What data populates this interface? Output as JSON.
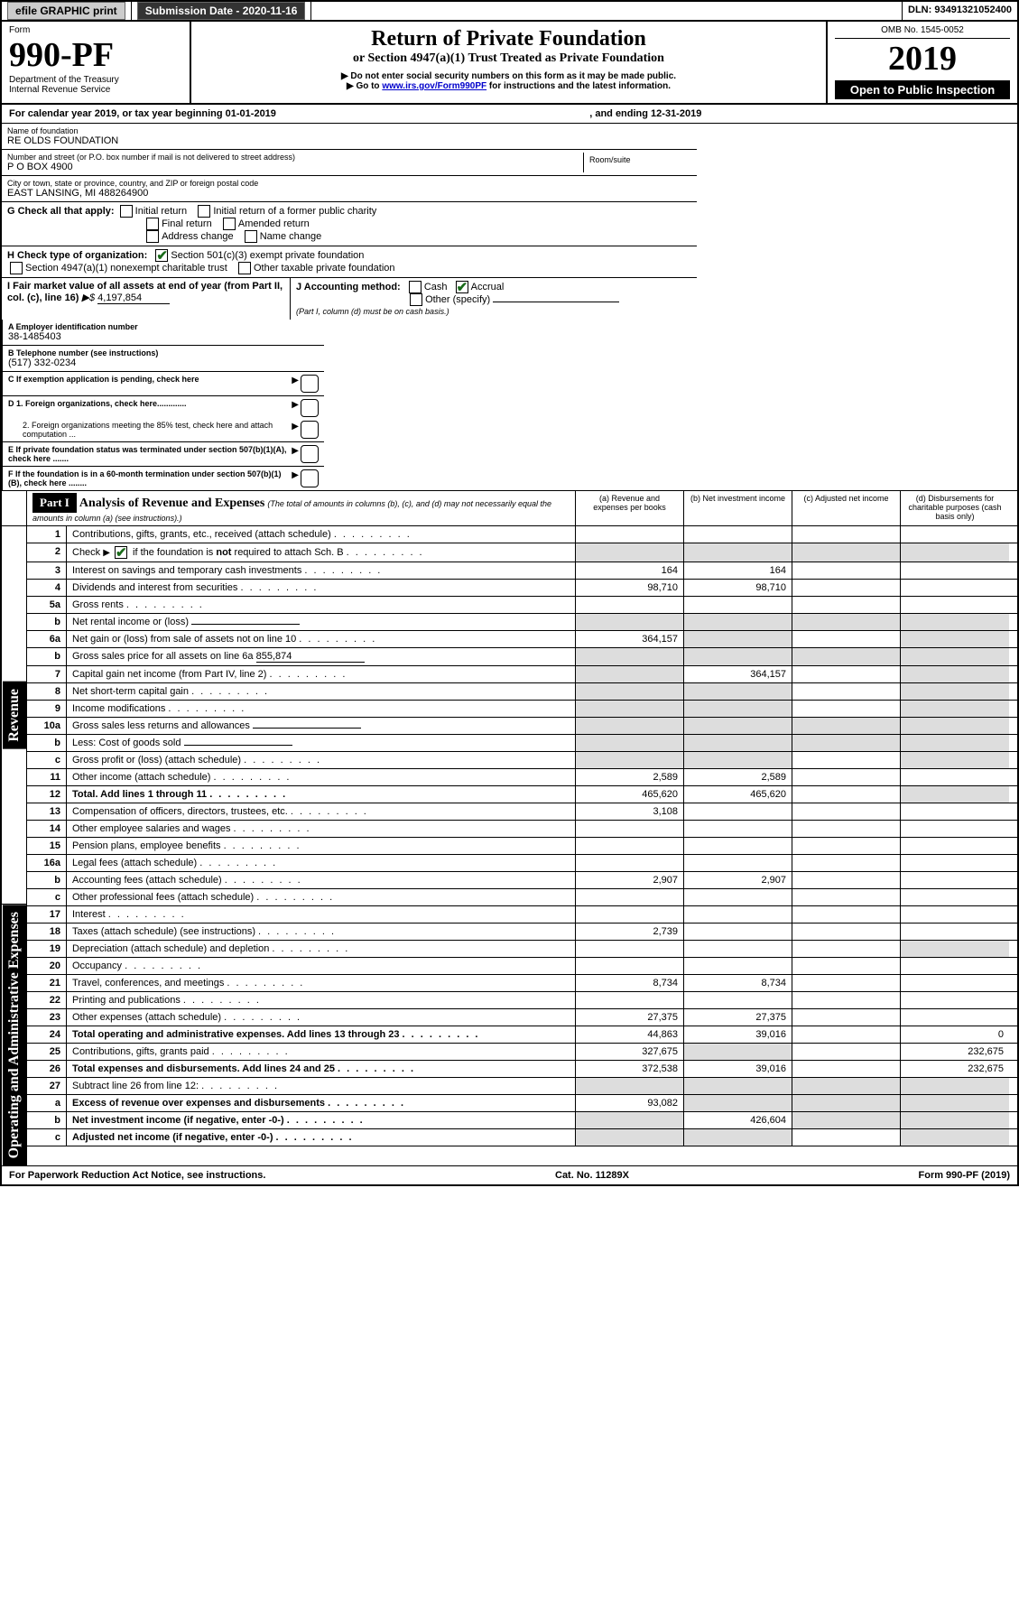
{
  "topbar": {
    "efile_btn": "efile GRAPHIC print",
    "sub_label": "Submission Date - 2020-11-16",
    "dln_label": "DLN: 93491321052400"
  },
  "header": {
    "form_word": "Form",
    "form_no": "990-PF",
    "dept": "Department of the Treasury",
    "irs": "Internal Revenue Service",
    "title": "Return of Private Foundation",
    "subtitle": "or Section 4947(a)(1) Trust Treated as Private Foundation",
    "note1": "▶ Do not enter social security numbers on this form as it may be made public.",
    "note2_pre": "▶ Go to ",
    "note2_link": "www.irs.gov/Form990PF",
    "note2_post": " for instructions and the latest information.",
    "omb": "OMB No. 1545-0052",
    "year": "2019",
    "open": "Open to Public Inspection"
  },
  "cal": {
    "line1": "For calendar year 2019, or tax year beginning 01-01-2019",
    "line2": ", and ending 12-31-2019"
  },
  "id": {
    "name_lbl": "Name of foundation",
    "name": "RE OLDS FOUNDATION",
    "addr_lbl": "Number and street (or P.O. box number if mail is not delivered to street address)",
    "addr": "P O BOX 4900",
    "room_lbl": "Room/suite",
    "city_lbl": "City or town, state or province, country, and ZIP or foreign postal code",
    "city": "EAST LANSING, MI  488264900",
    "ein_lbl": "A Employer identification number",
    "ein": "38-1485403",
    "tel_lbl": "B Telephone number (see instructions)",
    "tel": "(517) 332-0234",
    "c_lbl": "C If exemption application is pending, check here",
    "d1_lbl": "D 1. Foreign organizations, check here.............",
    "d2_lbl": "2. Foreign organizations meeting the 85% test, check here and attach computation ...",
    "e_lbl": "E  If private foundation status was terminated under section 507(b)(1)(A), check here .......",
    "f_lbl": "F  If the foundation is in a 60-month termination under section 507(b)(1)(B), check here ........"
  },
  "g": {
    "label": "G Check all that apply:",
    "opts": [
      "Initial return",
      "Initial return of a former public charity",
      "Final return",
      "Amended return",
      "Address change",
      "Name change"
    ]
  },
  "h": {
    "label": "H Check type of organization:",
    "o1": "Section 501(c)(3) exempt private foundation",
    "o2": "Section 4947(a)(1) nonexempt charitable trust",
    "o3": "Other taxable private foundation"
  },
  "i": {
    "label": "I Fair market value of all assets at end of year (from Part II, col. (c), line 16)",
    "arrow": "▶$",
    "val": "4,197,854"
  },
  "j": {
    "label": "J Accounting method:",
    "cash": "Cash",
    "accrual": "Accrual",
    "other": "Other (specify)",
    "note": "(Part I, column (d) must be on cash basis.)"
  },
  "part1": {
    "tag": "Part I",
    "title": "Analysis of Revenue and Expenses",
    "note": "(The total of amounts in columns (b), (c), and (d) may not necessarily equal the amounts in column (a) (see instructions).)",
    "cols": {
      "a": "(a) Revenue and expenses per books",
      "b": "(b) Net investment income",
      "c": "(c) Adjusted net income",
      "d": "(d) Disbursements for charitable purposes (cash basis only)"
    }
  },
  "side": {
    "rev": "Revenue",
    "exp": "Operating and Administrative Expenses"
  },
  "rows": [
    {
      "n": "1",
      "t": "Contributions, gifts, grants, etc., received (attach schedule)",
      "a": "",
      "b": "",
      "c": "",
      "d": ""
    },
    {
      "n": "2",
      "t": "Check ▶ ☑ if the foundation is not required to attach Sch. B",
      "a": "g",
      "b": "g",
      "c": "g",
      "d": "g",
      "ck": true
    },
    {
      "n": "3",
      "t": "Interest on savings and temporary cash investments",
      "a": "164",
      "b": "164",
      "c": "",
      "d": ""
    },
    {
      "n": "4",
      "t": "Dividends and interest from securities",
      "a": "98,710",
      "b": "98,710",
      "c": "",
      "d": ""
    },
    {
      "n": "5a",
      "t": "Gross rents",
      "a": "",
      "b": "",
      "c": "",
      "d": ""
    },
    {
      "n": "b",
      "t": "Net rental income or (loss)",
      "a": "g",
      "b": "g",
      "c": "g",
      "d": "g",
      "inline": true
    },
    {
      "n": "6a",
      "t": "Net gain or (loss) from sale of assets not on line 10",
      "a": "364,157",
      "b": "g",
      "c": "",
      "d": "g"
    },
    {
      "n": "b",
      "t": "Gross sales price for all assets on line 6a",
      "a": "g",
      "b": "g",
      "c": "g",
      "d": "g",
      "inline": true,
      "val": "855,874"
    },
    {
      "n": "7",
      "t": "Capital gain net income (from Part IV, line 2)",
      "a": "g",
      "b": "364,157",
      "c": "",
      "d": "g"
    },
    {
      "n": "8",
      "t": "Net short-term capital gain",
      "a": "g",
      "b": "g",
      "c": "",
      "d": "g"
    },
    {
      "n": "9",
      "t": "Income modifications",
      "a": "g",
      "b": "g",
      "c": "",
      "d": "g"
    },
    {
      "n": "10a",
      "t": "Gross sales less returns and allowances",
      "a": "g",
      "b": "g",
      "c": "g",
      "d": "g",
      "inline": true
    },
    {
      "n": "b",
      "t": "Less: Cost of goods sold",
      "a": "g",
      "b": "g",
      "c": "g",
      "d": "g",
      "inline": true
    },
    {
      "n": "c",
      "t": "Gross profit or (loss) (attach schedule)",
      "a": "g",
      "b": "g",
      "c": "",
      "d": "g"
    },
    {
      "n": "11",
      "t": "Other income (attach schedule)",
      "a": "2,589",
      "b": "2,589",
      "c": "",
      "d": ""
    },
    {
      "n": "12",
      "t": "Total. Add lines 1 through 11",
      "a": "465,620",
      "b": "465,620",
      "c": "",
      "d": "g",
      "bold": true
    },
    {
      "n": "13",
      "t": "Compensation of officers, directors, trustees, etc.",
      "a": "3,108",
      "b": "",
      "c": "",
      "d": ""
    },
    {
      "n": "14",
      "t": "Other employee salaries and wages",
      "a": "",
      "b": "",
      "c": "",
      "d": ""
    },
    {
      "n": "15",
      "t": "Pension plans, employee benefits",
      "a": "",
      "b": "",
      "c": "",
      "d": ""
    },
    {
      "n": "16a",
      "t": "Legal fees (attach schedule)",
      "a": "",
      "b": "",
      "c": "",
      "d": ""
    },
    {
      "n": "b",
      "t": "Accounting fees (attach schedule)",
      "a": "2,907",
      "b": "2,907",
      "c": "",
      "d": ""
    },
    {
      "n": "c",
      "t": "Other professional fees (attach schedule)",
      "a": "",
      "b": "",
      "c": "",
      "d": ""
    },
    {
      "n": "17",
      "t": "Interest",
      "a": "",
      "b": "",
      "c": "",
      "d": ""
    },
    {
      "n": "18",
      "t": "Taxes (attach schedule) (see instructions)",
      "a": "2,739",
      "b": "",
      "c": "",
      "d": ""
    },
    {
      "n": "19",
      "t": "Depreciation (attach schedule) and depletion",
      "a": "",
      "b": "",
      "c": "",
      "d": "g"
    },
    {
      "n": "20",
      "t": "Occupancy",
      "a": "",
      "b": "",
      "c": "",
      "d": ""
    },
    {
      "n": "21",
      "t": "Travel, conferences, and meetings",
      "a": "8,734",
      "b": "8,734",
      "c": "",
      "d": ""
    },
    {
      "n": "22",
      "t": "Printing and publications",
      "a": "",
      "b": "",
      "c": "",
      "d": ""
    },
    {
      "n": "23",
      "t": "Other expenses (attach schedule)",
      "a": "27,375",
      "b": "27,375",
      "c": "",
      "d": ""
    },
    {
      "n": "24",
      "t": "Total operating and administrative expenses. Add lines 13 through 23",
      "a": "44,863",
      "b": "39,016",
      "c": "",
      "d": "0",
      "bold": true
    },
    {
      "n": "25",
      "t": "Contributions, gifts, grants paid",
      "a": "327,675",
      "b": "g",
      "c": "",
      "d": "232,675"
    },
    {
      "n": "26",
      "t": "Total expenses and disbursements. Add lines 24 and 25",
      "a": "372,538",
      "b": "39,016",
      "c": "",
      "d": "232,675",
      "bold": true
    },
    {
      "n": "27",
      "t": "Subtract line 26 from line 12:",
      "a": "g",
      "b": "g",
      "c": "g",
      "d": "g"
    },
    {
      "n": "a",
      "t": "Excess of revenue over expenses and disbursements",
      "a": "93,082",
      "b": "g",
      "c": "g",
      "d": "g",
      "bold": true
    },
    {
      "n": "b",
      "t": "Net investment income (if negative, enter -0-)",
      "a": "g",
      "b": "426,604",
      "c": "g",
      "d": "g",
      "bold": true
    },
    {
      "n": "c",
      "t": "Adjusted net income (if negative, enter -0-)",
      "a": "g",
      "b": "g",
      "c": "",
      "d": "g",
      "bold": true
    }
  ],
  "footer": {
    "left": "For Paperwork Reduction Act Notice, see instructions.",
    "mid": "Cat. No. 11289X",
    "right": "Form 990-PF (2019)"
  }
}
